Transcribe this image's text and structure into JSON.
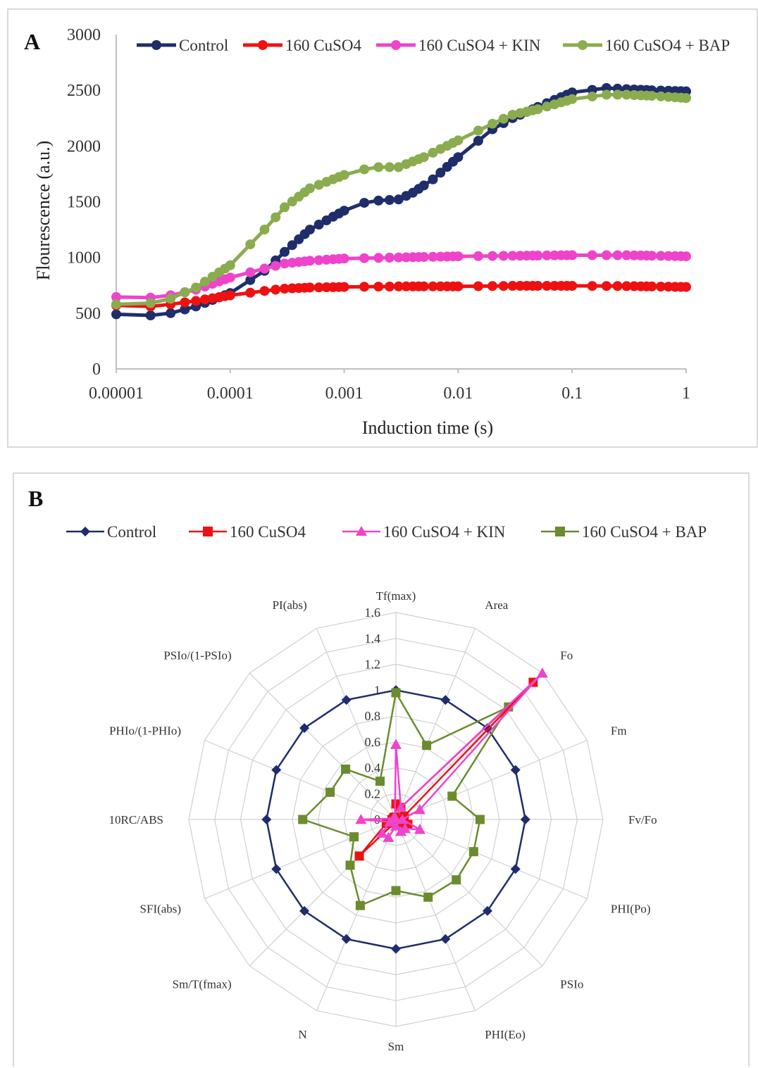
{
  "colors": {
    "control": "#1f2d6b",
    "cuso4": "#ee1111",
    "kin": "#ee44cc",
    "bap": "#8aac4f",
    "radar_bap": "#6b8c2e",
    "grid": "#d0d0d0",
    "axis": "#bfbfbf"
  },
  "panel_a": {
    "letter": "A",
    "legend": [
      "Control",
      "160 CuSO4",
      "160 CuSO4 + KIN",
      "160 CuSO4 + BAP"
    ],
    "chart_data": {
      "type": "line",
      "x_scale": "log",
      "xlabel": "Induction time (s)",
      "ylabel": "Flourescence (a.u.)",
      "xlim": [
        1e-05,
        1
      ],
      "ylim": [
        0,
        3000
      ],
      "x_ticks": [
        "0.00001",
        "0.0001",
        "0.001",
        "0.01",
        "0.1",
        "1"
      ],
      "y_ticks": [
        "0",
        "500",
        "1000",
        "1500",
        "2000",
        "2500",
        "3000"
      ],
      "series": [
        {
          "name": "Control",
          "points": [
            [
              1e-05,
              490
            ],
            [
              2e-05,
              480
            ],
            [
              3e-05,
              500
            ],
            [
              5e-05,
              560
            ],
            [
              0.0001,
              680
            ],
            [
              0.0002,
              880
            ],
            [
              0.0003,
              1050
            ],
            [
              0.0005,
              1250
            ],
            [
              0.001,
              1420
            ],
            [
              0.0015,
              1490
            ],
            [
              0.002,
              1510
            ],
            [
              0.003,
              1520
            ],
            [
              0.004,
              1580
            ],
            [
              0.006,
              1700
            ],
            [
              0.01,
              1900
            ],
            [
              0.02,
              2150
            ],
            [
              0.03,
              2250
            ],
            [
              0.05,
              2350
            ],
            [
              0.1,
              2480
            ],
            [
              0.2,
              2520
            ],
            [
              0.3,
              2510
            ],
            [
              0.5,
              2500
            ],
            [
              1,
              2490
            ]
          ]
        },
        {
          "name": "160 CuSO4",
          "points": [
            [
              1e-05,
              570
            ],
            [
              2e-05,
              560
            ],
            [
              3e-05,
              580
            ],
            [
              5e-05,
              610
            ],
            [
              0.0001,
              660
            ],
            [
              0.0002,
              700
            ],
            [
              0.0003,
              720
            ],
            [
              0.0005,
              730
            ],
            [
              0.001,
              735
            ],
            [
              0.003,
              740
            ],
            [
              0.01,
              740
            ],
            [
              0.03,
              745
            ],
            [
              0.1,
              745
            ],
            [
              0.3,
              743
            ],
            [
              1,
              735
            ]
          ]
        },
        {
          "name": "160 CuSO4 + KIN",
          "points": [
            [
              1e-05,
              645
            ],
            [
              2e-05,
              640
            ],
            [
              3e-05,
              660
            ],
            [
              5e-05,
              710
            ],
            [
              0.0001,
              820
            ],
            [
              0.0002,
              900
            ],
            [
              0.0003,
              945
            ],
            [
              0.0005,
              970
            ],
            [
              0.001,
              990
            ],
            [
              0.003,
              1000
            ],
            [
              0.01,
              1010
            ],
            [
              0.03,
              1015
            ],
            [
              0.1,
              1020
            ],
            [
              0.3,
              1020
            ],
            [
              1,
              1010
            ]
          ]
        },
        {
          "name": "160 CuSO4 + BAP",
          "points": [
            [
              1e-05,
              580
            ],
            [
              2e-05,
              590
            ],
            [
              3e-05,
              630
            ],
            [
              5e-05,
              730
            ],
            [
              0.0001,
              930
            ],
            [
              0.0002,
              1250
            ],
            [
              0.0003,
              1450
            ],
            [
              0.0005,
              1620
            ],
            [
              0.001,
              1740
            ],
            [
              0.0015,
              1790
            ],
            [
              0.002,
              1810
            ],
            [
              0.003,
              1810
            ],
            [
              0.005,
              1900
            ],
            [
              0.01,
              2050
            ],
            [
              0.02,
              2200
            ],
            [
              0.03,
              2280
            ],
            [
              0.05,
              2330
            ],
            [
              0.1,
              2420
            ],
            [
              0.2,
              2460
            ],
            [
              0.3,
              2460
            ],
            [
              0.5,
              2450
            ],
            [
              1,
              2430
            ]
          ]
        }
      ]
    }
  },
  "panel_b": {
    "letter": "B",
    "legend": [
      "Control",
      "160 CuSO4",
      "160 CuSO4 + KIN",
      "160 CuSO4 + BAP"
    ],
    "chart_data": {
      "type": "radar",
      "categories": [
        "Tf(max)",
        "Area",
        "Fo",
        "Fm",
        "Fv/Fo",
        "PHI(Po)",
        "PSIo",
        "PHI(Eo)",
        "Sm",
        "N",
        "Sm/T(fmax)",
        "SFI(abs)",
        "10RC/ABS",
        "PHIo/(1-PHIo)",
        "PSIo/(1-PSIo)",
        "PI(abs)"
      ],
      "rlim": [
        0,
        1.6
      ],
      "r_ticks": [
        "0",
        "0.2",
        "0.4",
        "0.6",
        "0.8",
        "1",
        "1.2",
        "1.4",
        "1.6"
      ],
      "series": [
        {
          "name": "Control",
          "values": [
            1,
            1,
            1,
            1,
            1,
            1,
            1,
            1,
            1,
            1,
            1,
            1,
            1,
            1,
            1,
            1
          ]
        },
        {
          "name": "160 CuSO4",
          "values": [
            0.12,
            0.1,
            1.5,
            0.07,
            0.05,
            0.1,
            0.05,
            0.03,
            0.02,
            0.03,
            0.4,
            0.08,
            0.03,
            0.02,
            0.02,
            0.02
          ]
        },
        {
          "name": "160 CuSO4 + KIN",
          "values": [
            0.58,
            0.1,
            1.6,
            0.2,
            0.05,
            0.2,
            0.1,
            0.1,
            0.05,
            0.15,
            0.15,
            0.05,
            0.27,
            0.02,
            0.02,
            0.02
          ]
        },
        {
          "name": "160 CuSO4 + BAP",
          "values": [
            0.98,
            0.62,
            1.23,
            0.47,
            0.65,
            0.65,
            0.66,
            0.65,
            0.55,
            0.72,
            0.5,
            0.35,
            0.72,
            0.55,
            0.55,
            0.32
          ]
        }
      ]
    }
  }
}
